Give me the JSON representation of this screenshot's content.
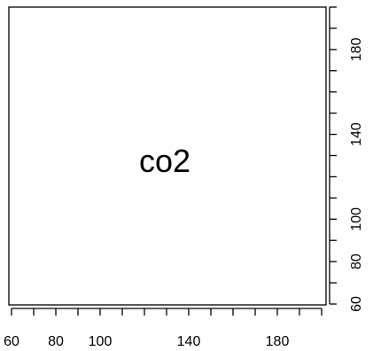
{
  "chart_data": {
    "type": "scatter",
    "title": "",
    "center_label": "co2",
    "xlabel": "",
    "ylabel": "",
    "x_ticks": [
      60,
      70,
      80,
      90,
      100,
      110,
      120,
      130,
      140,
      150,
      160,
      170,
      180,
      190,
      200
    ],
    "x_tick_labels": [
      "60",
      "",
      "80",
      "",
      "100",
      "",
      "",
      "",
      "140",
      "",
      "",
      "",
      "180",
      "",
      ""
    ],
    "y_ticks": [
      60,
      70,
      80,
      90,
      100,
      110,
      120,
      130,
      140,
      150,
      160,
      170,
      180,
      190,
      200
    ],
    "y_tick_labels": [
      "60",
      "",
      "80",
      "",
      "100",
      "",
      "",
      "",
      "140",
      "",
      "",
      "",
      "180",
      "",
      ""
    ],
    "xlim": [
      60,
      200
    ],
    "ylim": [
      60,
      200
    ],
    "series": []
  }
}
